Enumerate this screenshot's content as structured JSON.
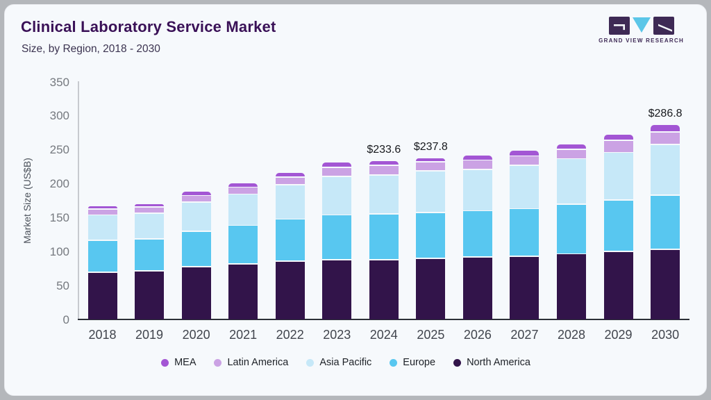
{
  "header": {
    "title": "Clinical Laboratory Service Market",
    "subtitle": "Size, by Region, 2018 - 2030"
  },
  "logo": {
    "text": "GRAND VIEW RESEARCH",
    "block_color": "#3e2a55",
    "triangle_color": "#5bc6e8"
  },
  "chart_data": {
    "type": "bar",
    "stacked": true,
    "title": "Clinical Laboratory Service Market",
    "subtitle": "Size, by Region, 2018 - 2030",
    "xlabel": "",
    "ylabel": "Market Size (US$B)",
    "ylim": [
      0,
      350
    ],
    "yticks": [
      0,
      50,
      100,
      150,
      200,
      250,
      300,
      350
    ],
    "grid": false,
    "legend_position": "bottom",
    "categories": [
      "2018",
      "2019",
      "2020",
      "2021",
      "2022",
      "2023",
      "2024",
      "2025",
      "2026",
      "2027",
      "2028",
      "2029",
      "2030"
    ],
    "series": [
      {
        "name": "North America",
        "color": "#32144a",
        "values": [
          69,
          71,
          77,
          81,
          85,
          87,
          87.0,
          89.5,
          91.5,
          92.5,
          96,
          99.5,
          102.7
        ]
      },
      {
        "name": "Europe",
        "color": "#58c7f0",
        "values": [
          47,
          47,
          52,
          57,
          62,
          66,
          67.8,
          67.5,
          68,
          70,
          73,
          75.5,
          79.6
        ]
      },
      {
        "name": "Asia Pacific",
        "color": "#c6e8f8",
        "values": [
          37,
          38,
          43,
          46,
          51,
          57,
          57.2,
          61.0,
          60.5,
          64,
          67,
          70.5,
          74.5
        ]
      },
      {
        "name": "Latin America",
        "color": "#cba2e4",
        "values": [
          9,
          9,
          10,
          10,
          11,
          13,
          14.5,
          13.3,
          14,
          13.5,
          14,
          17.5,
          18.7
        ]
      },
      {
        "name": "MEA",
        "color": "#a356d4",
        "values": [
          5,
          5,
          6,
          7,
          7,
          8,
          7.1,
          6.5,
          8,
          8.5,
          8,
          9.5,
          11.3
        ]
      }
    ],
    "total_labels": {
      "2024": "$233.6",
      "2025": "$237.8",
      "2030": "$286.8"
    },
    "legend_order": [
      "MEA",
      "Latin America",
      "Asia Pacific",
      "Europe",
      "North America"
    ]
  }
}
